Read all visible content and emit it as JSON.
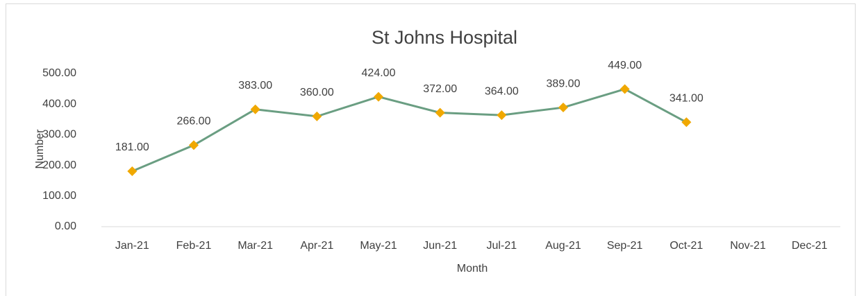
{
  "chart_data": {
    "type": "line",
    "title": "St Johns Hospital",
    "x_label": "Month",
    "y_label": "Number",
    "categories": [
      "Jan-21",
      "Feb-21",
      "Mar-21",
      "Apr-21",
      "May-21",
      "Jun-21",
      "Jul-21",
      "Aug-21",
      "Sep-21",
      "Oct-21",
      "Nov-21",
      "Dec-21"
    ],
    "series": [
      {
        "name": "Number",
        "color": "#6a9e82",
        "marker_color": "#f0a800",
        "values": [
          181,
          266,
          383,
          360,
          424,
          372,
          364,
          389,
          449,
          341,
          null,
          null
        ],
        "value_labels": [
          "181.00",
          "266.00",
          "383.00",
          "360.00",
          "424.00",
          "372.00",
          "364.00",
          "389.00",
          "449.00",
          "341.00",
          null,
          null
        ]
      }
    ],
    "ylim": [
      0,
      500
    ],
    "yticks": [
      {
        "value": 0,
        "label": "0.00"
      },
      {
        "value": 100,
        "label": "100.00"
      },
      {
        "value": 200,
        "label": "200.00"
      },
      {
        "value": 300,
        "label": "300.00"
      },
      {
        "value": 400,
        "label": "400.00"
      },
      {
        "value": 500,
        "label": "500.00"
      }
    ],
    "grid": false,
    "legend": false
  }
}
